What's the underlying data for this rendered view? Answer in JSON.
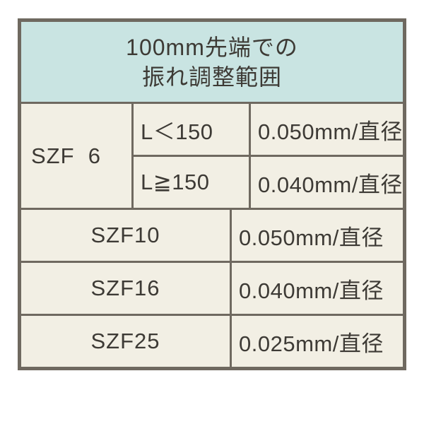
{
  "colors": {
    "border": "#6f6960",
    "header_bg": "#c9e4e2",
    "body_bg": "#f2efe4",
    "text": "#3d3a35"
  },
  "header": {
    "line1": "100mm先端での",
    "line2": "振れ調整範囲"
  },
  "szf6": {
    "model": "SZF  6",
    "rows": [
      {
        "cond": "L＜150",
        "value": "0.050mm/直径"
      },
      {
        "cond": "L≧150",
        "value": "0.040mm/直径"
      }
    ]
  },
  "rows": [
    {
      "model": "SZF10",
      "value": "0.050mm/直径"
    },
    {
      "model": "SZF16",
      "value": "0.040mm/直径"
    },
    {
      "model": "SZF25",
      "value": "0.025mm/直径"
    }
  ]
}
